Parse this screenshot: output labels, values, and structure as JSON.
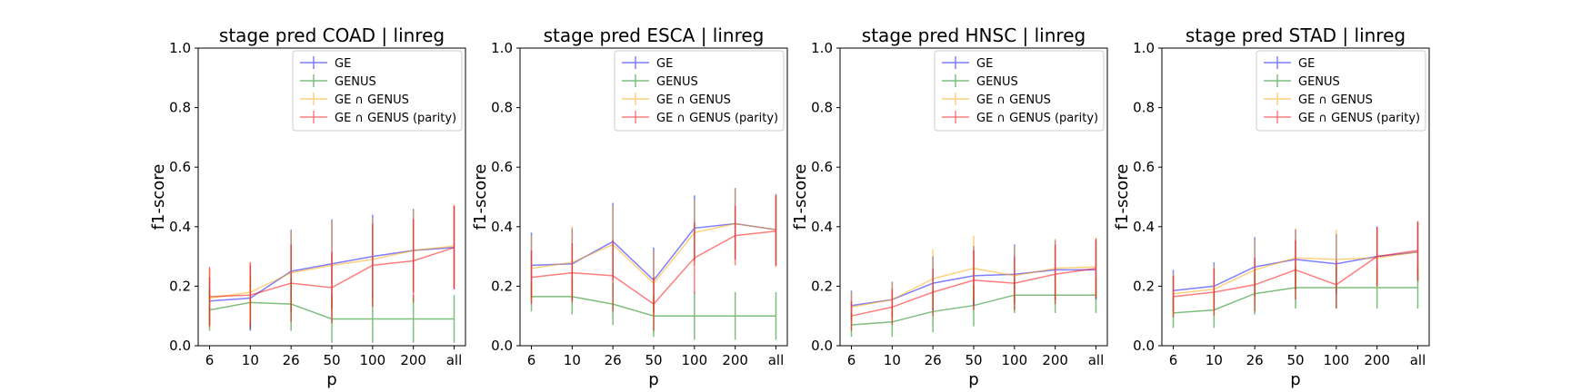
{
  "chart_data": [
    {
      "type": "line",
      "title": "stage pred COAD | linreg",
      "xlabel": "p",
      "ylabel": "f1-score",
      "ylim": [
        0,
        1
      ],
      "yticks": [
        "0.0",
        "0.2",
        "0.4",
        "0.6",
        "0.8",
        "1.0"
      ],
      "categories": [
        "6",
        "10",
        "26",
        "50",
        "100",
        "200",
        "all"
      ],
      "legend": "upper-right",
      "series": [
        {
          "name": "GE",
          "color": "#0000ff",
          "values": [
            0.15,
            0.16,
            0.25,
            0.275,
            0.3,
            0.32,
            0.33
          ],
          "errors": [
            0.08,
            0.11,
            0.14,
            0.15,
            0.14,
            0.14,
            0.14
          ]
        },
        {
          "name": "GENUS",
          "color": "#008000",
          "values": [
            0.12,
            0.145,
            0.14,
            0.09,
            0.09,
            0.09,
            0.09
          ],
          "errors": [
            0.07,
            0.09,
            0.09,
            0.08,
            0.08,
            0.08,
            0.08
          ]
        },
        {
          "name": "GE ∩ GENUS",
          "color": "#ffa500",
          "values": [
            0.16,
            0.18,
            0.245,
            0.27,
            0.29,
            0.32,
            0.335
          ],
          "errors": [
            0.1,
            0.1,
            0.14,
            0.15,
            0.14,
            0.14,
            0.14
          ]
        },
        {
          "name": "GE ∩ GENUS (parity)",
          "color": "#ff0000",
          "values": [
            0.165,
            0.17,
            0.21,
            0.195,
            0.27,
            0.285,
            0.33
          ],
          "errors": [
            0.1,
            0.11,
            0.13,
            0.12,
            0.14,
            0.14,
            0.14
          ]
        }
      ]
    },
    {
      "type": "line",
      "title": "stage pred ESCA | linreg",
      "xlabel": "p",
      "ylabel": "f1-score",
      "ylim": [
        0,
        1
      ],
      "yticks": [
        "0.0",
        "0.2",
        "0.4",
        "0.6",
        "0.8",
        "1.0"
      ],
      "categories": [
        "6",
        "10",
        "26",
        "50",
        "100",
        "200",
        "all"
      ],
      "legend": "upper-right",
      "series": [
        {
          "name": "GE",
          "color": "#0000ff",
          "values": [
            0.27,
            0.275,
            0.35,
            0.22,
            0.395,
            0.41,
            0.39
          ],
          "errors": [
            0.11,
            0.12,
            0.13,
            0.11,
            0.11,
            0.12,
            0.12
          ]
        },
        {
          "name": "GENUS",
          "color": "#008000",
          "values": [
            0.165,
            0.165,
            0.14,
            0.1,
            0.1,
            0.1,
            0.1
          ],
          "errors": [
            0.05,
            0.06,
            0.07,
            0.07,
            0.08,
            0.08,
            0.08
          ]
        },
        {
          "name": "GE ∩ GENUS",
          "color": "#ffa500",
          "values": [
            0.26,
            0.28,
            0.34,
            0.21,
            0.38,
            0.41,
            0.39
          ],
          "errors": [
            0.11,
            0.12,
            0.13,
            0.11,
            0.11,
            0.12,
            0.12
          ]
        },
        {
          "name": "GE ∩ GENUS (parity)",
          "color": "#ff0000",
          "values": [
            0.23,
            0.245,
            0.235,
            0.14,
            0.295,
            0.37,
            0.385
          ],
          "errors": [
            0.09,
            0.1,
            0.12,
            0.09,
            0.12,
            0.1,
            0.12
          ]
        }
      ]
    },
    {
      "type": "line",
      "title": "stage pred HNSC | linreg",
      "xlabel": "p",
      "ylabel": "f1-score",
      "ylim": [
        0,
        1
      ],
      "yticks": [
        "0.0",
        "0.2",
        "0.4",
        "0.6",
        "0.8",
        "1.0"
      ],
      "categories": [
        "6",
        "10",
        "26",
        "50",
        "100",
        "200",
        "all"
      ],
      "legend": "upper-right",
      "series": [
        {
          "name": "GE",
          "color": "#0000ff",
          "values": [
            0.135,
            0.155,
            0.21,
            0.235,
            0.24,
            0.255,
            0.255
          ],
          "errors": [
            0.05,
            0.06,
            0.09,
            0.1,
            0.1,
            0.1,
            0.1
          ]
        },
        {
          "name": "GENUS",
          "color": "#008000",
          "values": [
            0.07,
            0.08,
            0.115,
            0.135,
            0.17,
            0.17,
            0.17
          ],
          "errors": [
            0.04,
            0.05,
            0.07,
            0.07,
            0.06,
            0.06,
            0.06
          ]
        },
        {
          "name": "GE ∩ GENUS",
          "color": "#ffa500",
          "values": [
            0.13,
            0.155,
            0.225,
            0.26,
            0.235,
            0.26,
            0.265
          ],
          "errors": [
            0.05,
            0.06,
            0.1,
            0.11,
            0.1,
            0.1,
            0.1
          ]
        },
        {
          "name": "GE ∩ GENUS (parity)",
          "color": "#ff0000",
          "values": [
            0.1,
            0.13,
            0.18,
            0.22,
            0.21,
            0.24,
            0.26
          ],
          "errors": [
            0.05,
            0.06,
            0.08,
            0.1,
            0.09,
            0.1,
            0.1
          ]
        }
      ]
    },
    {
      "type": "line",
      "title": "stage pred STAD | linreg",
      "xlabel": "p",
      "ylabel": "f1-score",
      "ylim": [
        0,
        1
      ],
      "yticks": [
        "0.0",
        "0.2",
        "0.4",
        "0.6",
        "0.8",
        "1.0"
      ],
      "categories": [
        "6",
        "10",
        "26",
        "50",
        "100",
        "200",
        "all"
      ],
      "legend": "upper-right",
      "series": [
        {
          "name": "GE",
          "color": "#0000ff",
          "values": [
            0.185,
            0.2,
            0.265,
            0.29,
            0.275,
            0.3,
            0.315
          ],
          "errors": [
            0.07,
            0.08,
            0.1,
            0.1,
            0.1,
            0.1,
            0.1
          ]
        },
        {
          "name": "GENUS",
          "color": "#008000",
          "values": [
            0.11,
            0.12,
            0.175,
            0.195,
            0.195,
            0.195,
            0.195
          ],
          "errors": [
            0.05,
            0.06,
            0.07,
            0.07,
            0.07,
            0.07,
            0.07
          ]
        },
        {
          "name": "GE ∩ GENUS",
          "color": "#ffa500",
          "values": [
            0.175,
            0.19,
            0.255,
            0.295,
            0.29,
            0.295,
            0.315
          ],
          "errors": [
            0.07,
            0.08,
            0.1,
            0.1,
            0.1,
            0.1,
            0.1
          ]
        },
        {
          "name": "GE ∩ GENUS (parity)",
          "color": "#ff0000",
          "values": [
            0.165,
            0.18,
            0.205,
            0.255,
            0.205,
            0.3,
            0.32
          ],
          "errors": [
            0.07,
            0.08,
            0.09,
            0.1,
            0.08,
            0.1,
            0.1
          ]
        }
      ]
    }
  ]
}
